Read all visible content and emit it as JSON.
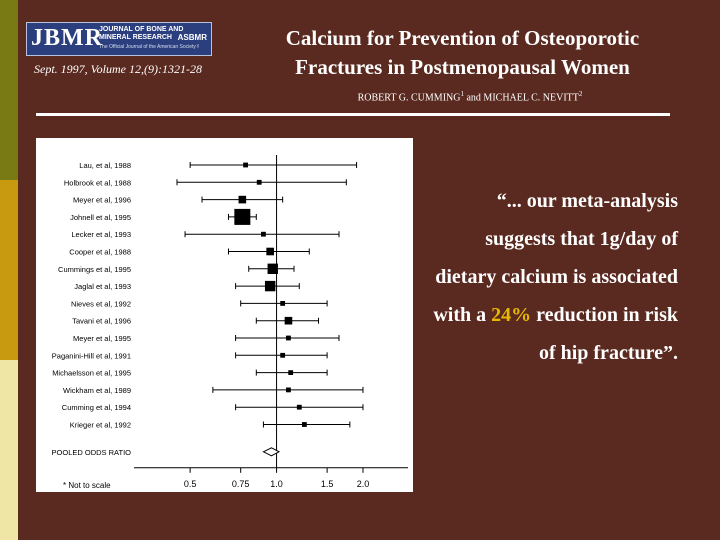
{
  "header": {
    "journal_abbrev": "JBMR",
    "journal_name": "JOURNAL OF BONE AND MINERAL RESEARCH",
    "journal_sub": "The Official Journal of the American Society for Bone and Mineral Research",
    "society": "ASBMR",
    "citation": "Sept. 1997, Volume 12,(9):1321-28",
    "title_line1": "Calcium for Prevention of Osteoporotic",
    "title_line2": "Fractures in Postmenopausal Women",
    "author1": "ROBERT G. CUMMING",
    "author1_sup": "1",
    "author_join": " and ",
    "author2": "MICHAEL C. NEVITT",
    "author2_sup": "2"
  },
  "quote": {
    "part1": "“... our meta-analysis suggests that 1g/day of dietary calcium is associated with a ",
    "highlight": "24%",
    "part2": " reduction in risk of hip fracture”."
  },
  "colors": {
    "background": "#5a2a20",
    "highlight": "#e8b800",
    "stripe_top": "#7a7a14",
    "stripe_mid": "#c89a10",
    "stripe_bottom": "#efe6a6"
  },
  "chart_data": {
    "type": "forest",
    "x_ticks": [
      "0.5",
      "0.75",
      "1.0",
      "1.5",
      "2.0"
    ],
    "x_tick_values": [
      0.5,
      0.75,
      1.0,
      1.5,
      2.0
    ],
    "xlim": [
      0.45,
      2.15
    ],
    "reference_line": 1.0,
    "studies": [
      {
        "label": "Lau, et al, 1988",
        "or": 0.78,
        "ci": [
          0.5,
          1.9
        ],
        "weight": 1
      },
      {
        "label": "Holbrook et al, 1988",
        "or": 0.87,
        "ci": [
          0.45,
          1.75
        ],
        "weight": 1
      },
      {
        "label": "Meyer et al, 1996",
        "or": 0.76,
        "ci": [
          0.55,
          1.05
        ],
        "weight": 2
      },
      {
        "label": "Johnell et al, 1995",
        "or": 0.76,
        "ci": [
          0.68,
          0.85
        ],
        "weight": 5
      },
      {
        "label": "Lecker et al, 1993",
        "or": 0.9,
        "ci": [
          0.48,
          1.65
        ],
        "weight": 1
      },
      {
        "label": "Cooper et al, 1988",
        "or": 0.95,
        "ci": [
          0.68,
          1.3
        ],
        "weight": 2
      },
      {
        "label": "Cummings et al, 1995",
        "or": 0.97,
        "ci": [
          0.8,
          1.15
        ],
        "weight": 3
      },
      {
        "label": "Jaglal et al, 1993",
        "or": 0.95,
        "ci": [
          0.72,
          1.2
        ],
        "weight": 3
      },
      {
        "label": "Nieves et al, 1992",
        "or": 1.05,
        "ci": [
          0.75,
          1.5
        ],
        "weight": 1
      },
      {
        "label": "Tavani et al, 1996",
        "or": 1.1,
        "ci": [
          0.85,
          1.4
        ],
        "weight": 2
      },
      {
        "label": "Meyer et al, 1995",
        "or": 1.1,
        "ci": [
          0.72,
          1.65
        ],
        "weight": 1
      },
      {
        "label": "Paganini-Hill et al, 1991",
        "or": 1.05,
        "ci": [
          0.72,
          1.5
        ],
        "weight": 1
      },
      {
        "label": "Michaelsson et al, 1995",
        "or": 1.12,
        "ci": [
          0.85,
          1.5
        ],
        "weight": 1
      },
      {
        "label": "Wickham et al, 1989",
        "or": 1.1,
        "ci": [
          0.6,
          2.0
        ],
        "weight": 1
      },
      {
        "label": "Cumming et al, 1994",
        "or": 1.2,
        "ci": [
          0.72,
          2.0
        ],
        "weight": 1
      },
      {
        "label": "Krieger et al, 1992",
        "or": 1.25,
        "ci": [
          0.9,
          1.8
        ],
        "weight": 1
      }
    ],
    "pooled": {
      "label": "POOLED ODDS RATIO",
      "or": 0.96,
      "ci": [
        0.9,
        1.02
      ]
    },
    "footnote": "* Not to scale"
  }
}
